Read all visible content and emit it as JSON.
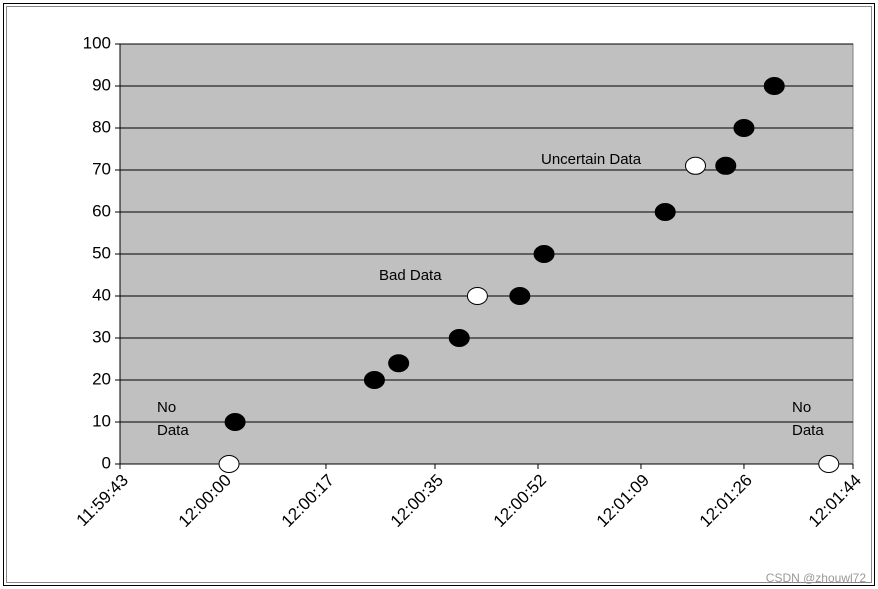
{
  "chart_data": {
    "type": "scatter",
    "xlim": [
      "11:59:43",
      "12:01:44"
    ],
    "xticks": [
      "11:59:43",
      "12:00:00",
      "12:00:17",
      "12:00:35",
      "12:00:52",
      "12:01:09",
      "12:01:26",
      "12:01:44"
    ],
    "ylim": [
      0,
      100
    ],
    "yticks": [
      0,
      10,
      20,
      30,
      40,
      50,
      60,
      70,
      80,
      90,
      100
    ],
    "grid": true,
    "series": [
      {
        "color": "#000000",
        "x": [
          "12:00:02",
          "12:00:25",
          "12:00:29",
          "12:00:39",
          "12:00:49",
          "12:00:53",
          "12:01:13",
          "12:01:23",
          "12:01:26",
          "12:01:31"
        ],
        "values": [
          10,
          20,
          24,
          30,
          40,
          50,
          60,
          71,
          80,
          90
        ]
      },
      {
        "color": "#ffffff",
        "x": [
          "12:00:01",
          "12:00:42",
          "12:01:18",
          "12:01:40"
        ],
        "values": [
          0,
          40,
          71,
          0
        ]
      }
    ],
    "annotations": [
      "No Data",
      "Bad Data",
      "Uncertain Data",
      "No Data"
    ],
    "watermark": "CSDN @zhouwl72"
  }
}
